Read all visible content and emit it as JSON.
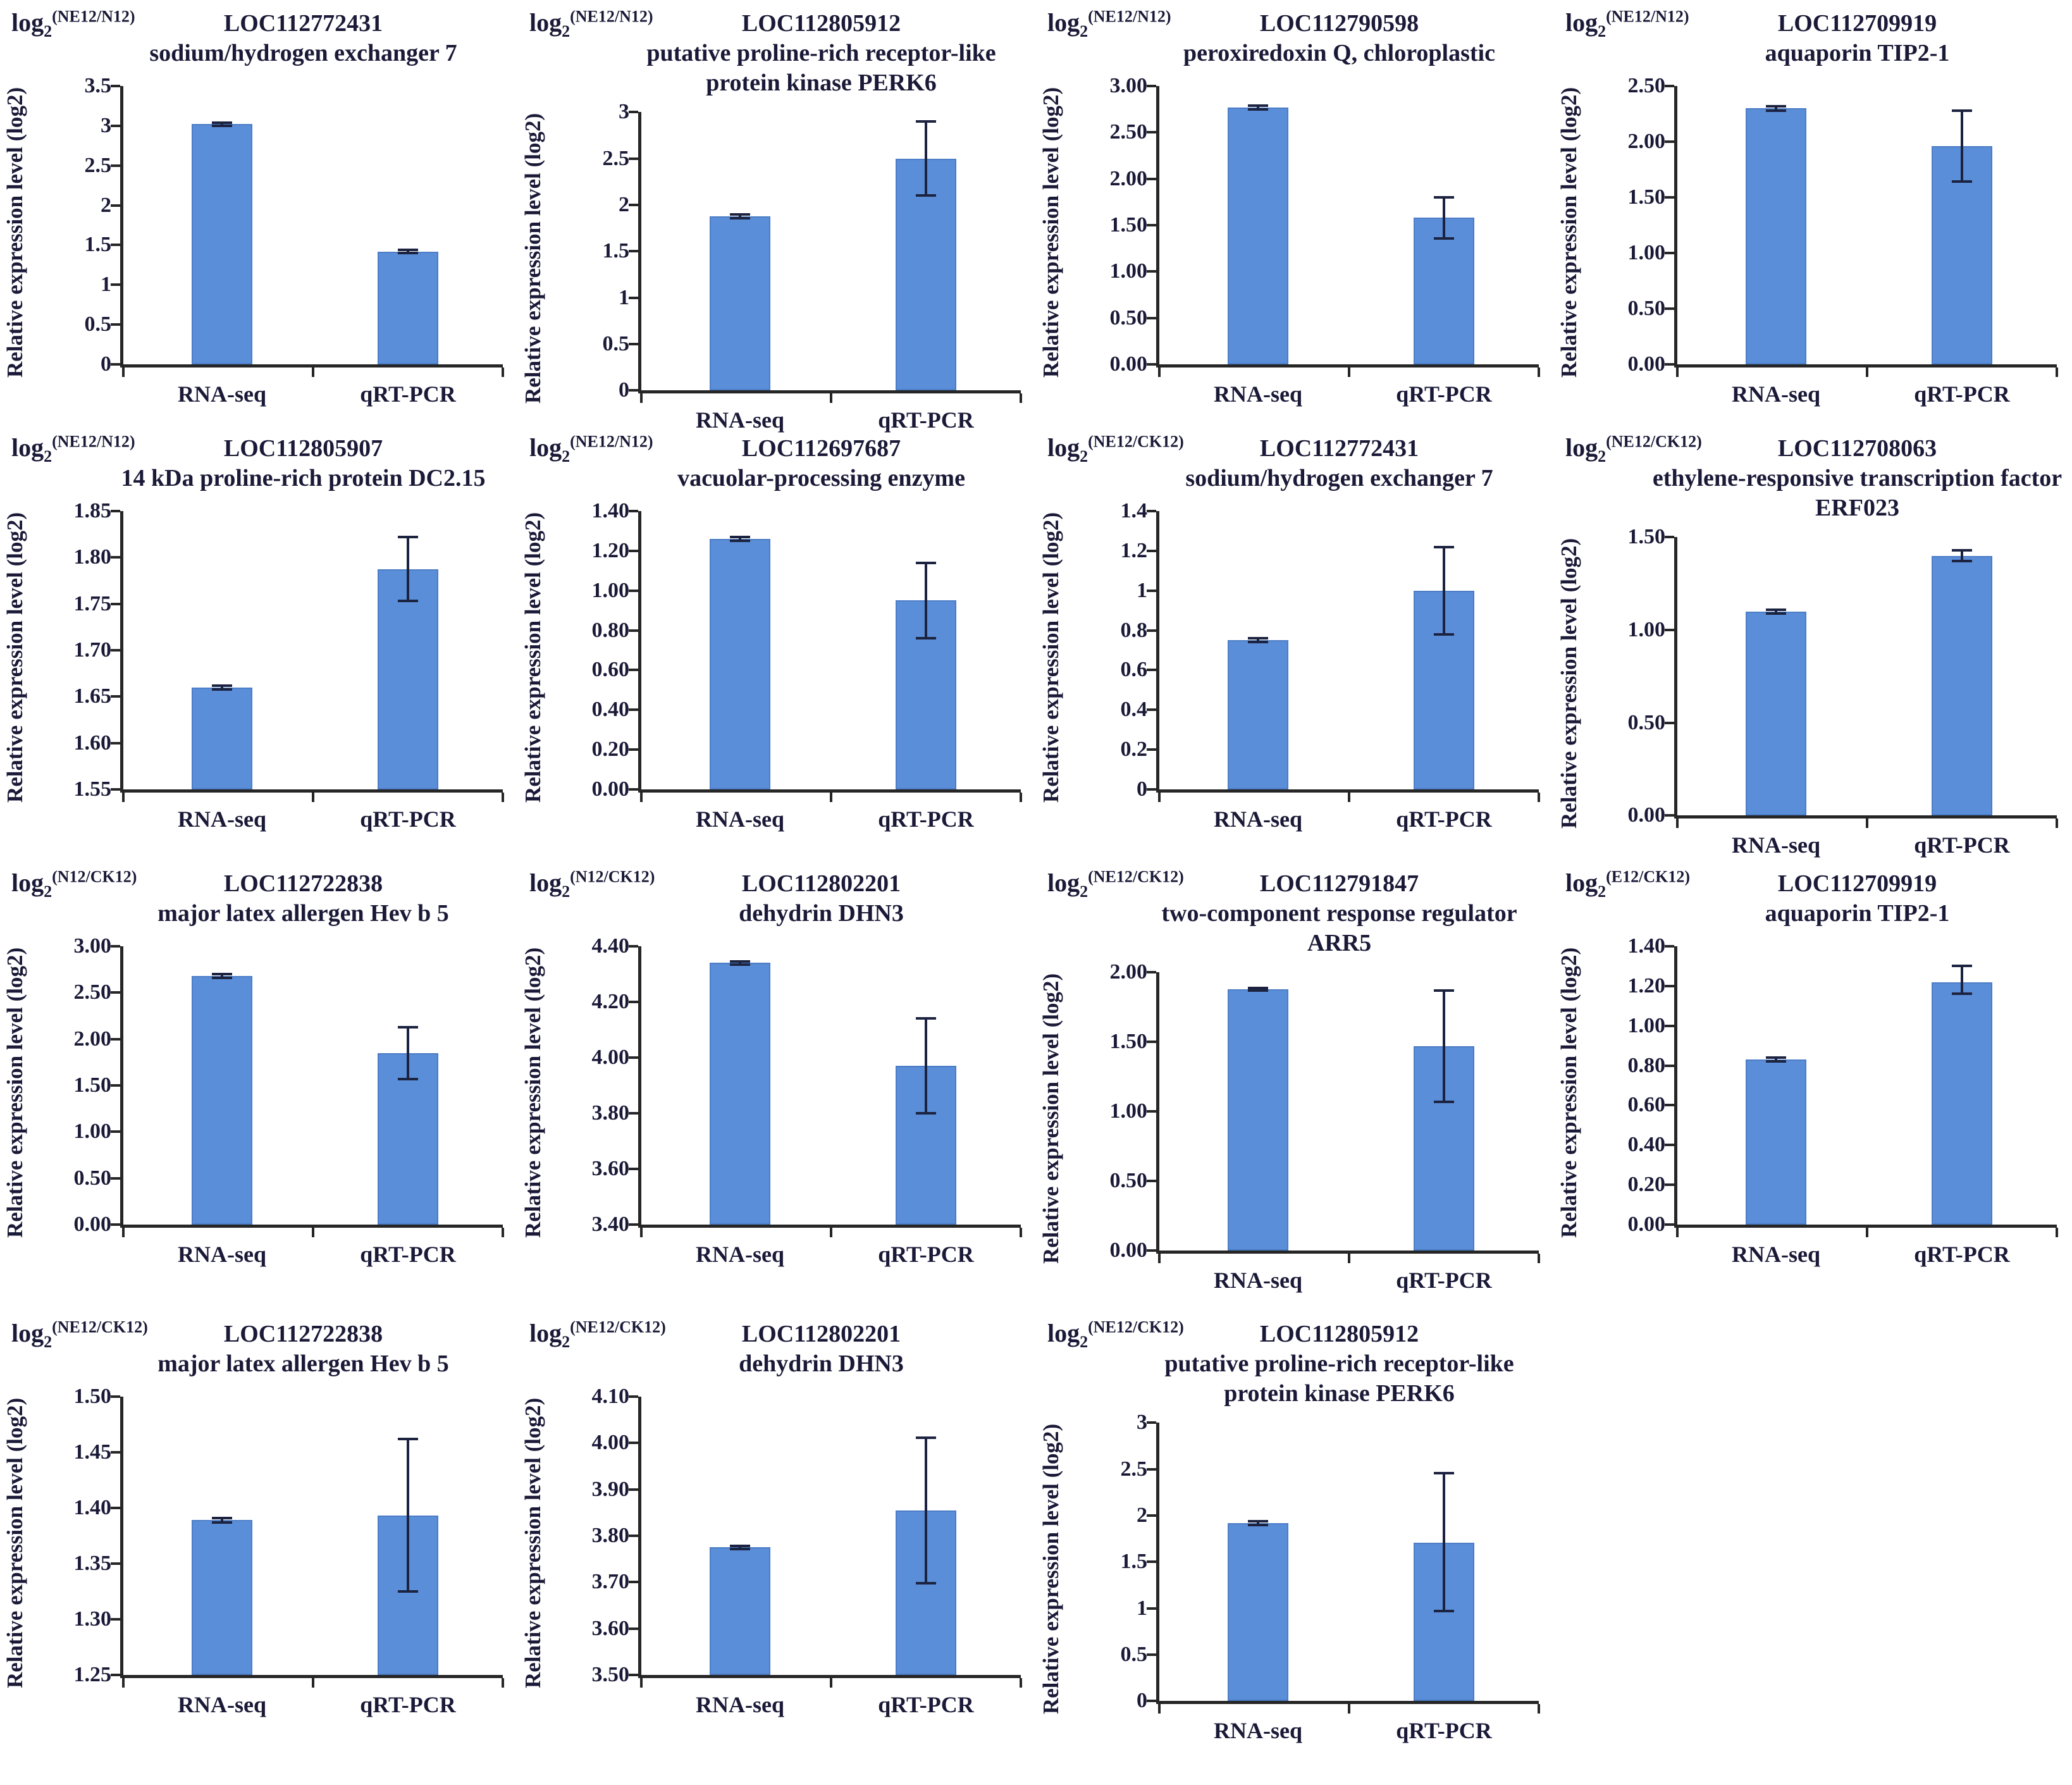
{
  "common": {
    "log_prefix": "log",
    "log_base": "2",
    "y_axis_label": "Relative expression level (log2)",
    "categories": [
      "RNA-seq",
      "qRT-PCR"
    ],
    "bar_color": "#5b8ed8",
    "bar_border_color": "#4c7dc6",
    "error_bar_color": "#1c2340",
    "axis_color": "#262626",
    "text_color": "#1a1a38"
  },
  "chart_data": [
    {
      "type": "bar",
      "ratio": "(NE12/N12)",
      "gene": "LOC112772431",
      "description": "sodium/hydrogen exchanger 7",
      "categories": [
        "RNA-seq",
        "qRT-PCR"
      ],
      "values": [
        3.02,
        1.42
      ],
      "errors": [
        [
          3.0,
          3.04
        ],
        [
          1.4,
          1.44
        ]
      ],
      "ylim": [
        0,
        3.5
      ],
      "yticks": [
        {
          "v": 0,
          "label": "0"
        },
        {
          "v": 0.5,
          "label": "0.5"
        },
        {
          "v": 1,
          "label": "1"
        },
        {
          "v": 1.5,
          "label": "1.5"
        },
        {
          "v": 2,
          "label": "2"
        },
        {
          "v": 2.5,
          "label": "2.5"
        },
        {
          "v": 3,
          "label": "3"
        },
        {
          "v": 3.5,
          "label": "3.5"
        }
      ]
    },
    {
      "type": "bar",
      "ratio": "(NE12/N12)",
      "gene": "LOC112805912",
      "description": "putative proline-rich receptor-like protein kinase PERK6",
      "categories": [
        "RNA-seq",
        "qRT-PCR"
      ],
      "values": [
        1.88,
        2.5
      ],
      "errors": [
        [
          1.86,
          1.9
        ],
        [
          2.1,
          2.9
        ]
      ],
      "ylim": [
        0,
        3
      ],
      "yticks": [
        {
          "v": 0,
          "label": "0"
        },
        {
          "v": 0.5,
          "label": "0.5"
        },
        {
          "v": 1,
          "label": "1"
        },
        {
          "v": 1.5,
          "label": "1.5"
        },
        {
          "v": 2,
          "label": "2"
        },
        {
          "v": 2.5,
          "label": "2.5"
        },
        {
          "v": 3,
          "label": "3"
        }
      ]
    },
    {
      "type": "bar",
      "ratio": "(NE12/N12)",
      "gene": "LOC112790598",
      "description": "peroxiredoxin Q, chloroplastic",
      "categories": [
        "RNA-seq",
        "qRT-PCR"
      ],
      "values": [
        2.77,
        1.58
      ],
      "errors": [
        [
          2.75,
          2.79
        ],
        [
          1.36,
          1.8
        ]
      ],
      "ylim": [
        0,
        3
      ],
      "yticks": [
        {
          "v": 0,
          "label": "0.00"
        },
        {
          "v": 0.5,
          "label": "0.50"
        },
        {
          "v": 1,
          "label": "1.00"
        },
        {
          "v": 1.5,
          "label": "1.50"
        },
        {
          "v": 2,
          "label": "2.00"
        },
        {
          "v": 2.5,
          "label": "2.50"
        },
        {
          "v": 3,
          "label": "3.00"
        }
      ]
    },
    {
      "type": "bar",
      "ratio": "(NE12/N12)",
      "gene": "LOC112709919",
      "description": "aquaporin TIP2-1",
      "categories": [
        "RNA-seq",
        "qRT-PCR"
      ],
      "values": [
        2.3,
        1.96
      ],
      "errors": [
        [
          2.28,
          2.32
        ],
        [
          1.64,
          2.28
        ]
      ],
      "ylim": [
        0,
        2.5
      ],
      "yticks": [
        {
          "v": 0,
          "label": "0.00"
        },
        {
          "v": 0.5,
          "label": "0.50"
        },
        {
          "v": 1,
          "label": "1.00"
        },
        {
          "v": 1.5,
          "label": "1.50"
        },
        {
          "v": 2,
          "label": "2.00"
        },
        {
          "v": 2.5,
          "label": "2.50"
        }
      ]
    },
    {
      "type": "bar",
      "ratio": "(NE12/N12)",
      "gene": "LOC112805907",
      "description": "14 kDa proline-rich protein DC2.15",
      "categories": [
        "RNA-seq",
        "qRT-PCR"
      ],
      "values": [
        1.66,
        1.787
      ],
      "errors": [
        [
          1.658,
          1.662
        ],
        [
          1.753,
          1.822
        ]
      ],
      "ylim": [
        1.55,
        1.85
      ],
      "yticks": [
        {
          "v": 1.55,
          "label": "1.55"
        },
        {
          "v": 1.6,
          "label": "1.60"
        },
        {
          "v": 1.65,
          "label": "1.65"
        },
        {
          "v": 1.7,
          "label": "1.70"
        },
        {
          "v": 1.75,
          "label": "1.75"
        },
        {
          "v": 1.8,
          "label": "1.80"
        },
        {
          "v": 1.85,
          "label": "1.85"
        }
      ]
    },
    {
      "type": "bar",
      "ratio": "(NE12/N12)",
      "gene": "LOC112697687",
      "description": "vacuolar-processing enzyme",
      "categories": [
        "RNA-seq",
        "qRT-PCR"
      ],
      "values": [
        1.26,
        0.95
      ],
      "errors": [
        [
          1.25,
          1.27
        ],
        [
          0.76,
          1.14
        ]
      ],
      "ylim": [
        0,
        1.4
      ],
      "yticks": [
        {
          "v": 0,
          "label": "0.00"
        },
        {
          "v": 0.2,
          "label": "0.20"
        },
        {
          "v": 0.4,
          "label": "0.40"
        },
        {
          "v": 0.6,
          "label": "0.60"
        },
        {
          "v": 0.8,
          "label": "0.80"
        },
        {
          "v": 1.0,
          "label": "1.00"
        },
        {
          "v": 1.2,
          "label": "1.20"
        },
        {
          "v": 1.4,
          "label": "1.40"
        }
      ]
    },
    {
      "type": "bar",
      "ratio": "(NE12/CK12)",
      "gene": "LOC112772431",
      "description": "sodium/hydrogen exchanger 7",
      "categories": [
        "RNA-seq",
        "qRT-PCR"
      ],
      "values": [
        0.75,
        1.0
      ],
      "errors": [
        [
          0.74,
          0.76
        ],
        [
          0.78,
          1.22
        ]
      ],
      "ylim": [
        0,
        1.4
      ],
      "yticks": [
        {
          "v": 0,
          "label": "0"
        },
        {
          "v": 0.2,
          "label": "0.2"
        },
        {
          "v": 0.4,
          "label": "0.4"
        },
        {
          "v": 0.6,
          "label": "0.6"
        },
        {
          "v": 0.8,
          "label": "0.8"
        },
        {
          "v": 1.0,
          "label": "1"
        },
        {
          "v": 1.2,
          "label": "1.2"
        },
        {
          "v": 1.4,
          "label": "1.4"
        }
      ]
    },
    {
      "type": "bar",
      "ratio": "(NE12/CK12)",
      "gene": "LOC112708063",
      "description": "ethylene-responsive transcription factor ERF023",
      "categories": [
        "RNA-seq",
        "qRT-PCR"
      ],
      "values": [
        1.1,
        1.4
      ],
      "errors": [
        [
          1.09,
          1.11
        ],
        [
          1.37,
          1.43
        ]
      ],
      "ylim": [
        0,
        1.5
      ],
      "yticks": [
        {
          "v": 0,
          "label": "0.00"
        },
        {
          "v": 0.5,
          "label": "0.50"
        },
        {
          "v": 1.0,
          "label": "1.00"
        },
        {
          "v": 1.5,
          "label": "1.50"
        }
      ]
    },
    {
      "type": "bar",
      "ratio": "(N12/CK12)",
      "gene": "LOC112722838",
      "description": "major latex allergen Hev b 5",
      "categories": [
        "RNA-seq",
        "qRT-PCR"
      ],
      "values": [
        2.68,
        1.85
      ],
      "errors": [
        [
          2.66,
          2.7
        ],
        [
          1.57,
          2.13
        ]
      ],
      "ylim": [
        0,
        3
      ],
      "yticks": [
        {
          "v": 0,
          "label": "0.00"
        },
        {
          "v": 0.5,
          "label": "0.50"
        },
        {
          "v": 1,
          "label": "1.00"
        },
        {
          "v": 1.5,
          "label": "1.50"
        },
        {
          "v": 2,
          "label": "2.00"
        },
        {
          "v": 2.5,
          "label": "2.50"
        },
        {
          "v": 3,
          "label": "3.00"
        }
      ]
    },
    {
      "type": "bar",
      "ratio": "(N12/CK12)",
      "gene": "LOC112802201",
      "description": "dehydrin DHN3",
      "categories": [
        "RNA-seq",
        "qRT-PCR"
      ],
      "values": [
        4.34,
        3.97
      ],
      "errors": [
        [
          4.335,
          4.345
        ],
        [
          3.8,
          4.14
        ]
      ],
      "ylim": [
        3.4,
        4.4
      ],
      "yticks": [
        {
          "v": 3.4,
          "label": "3.40"
        },
        {
          "v": 3.6,
          "label": "3.60"
        },
        {
          "v": 3.8,
          "label": "3.80"
        },
        {
          "v": 4.0,
          "label": "4.00"
        },
        {
          "v": 4.2,
          "label": "4.20"
        },
        {
          "v": 4.4,
          "label": "4.40"
        }
      ]
    },
    {
      "type": "bar",
      "ratio": "(NE12/CK12)",
      "gene": "LOC112791847",
      "description": "two-component response regulator ARR5",
      "categories": [
        "RNA-seq",
        "qRT-PCR"
      ],
      "values": [
        1.88,
        1.47
      ],
      "errors": [
        [
          1.87,
          1.89
        ],
        [
          1.07,
          1.87
        ]
      ],
      "ylim": [
        0,
        2
      ],
      "yticks": [
        {
          "v": 0,
          "label": "0.00"
        },
        {
          "v": 0.5,
          "label": "0.50"
        },
        {
          "v": 1.0,
          "label": "1.00"
        },
        {
          "v": 1.5,
          "label": "1.50"
        },
        {
          "v": 2.0,
          "label": "2.00"
        }
      ]
    },
    {
      "type": "bar",
      "ratio": "(E12/CK12)",
      "gene": "LOC112709919",
      "description": "aquaporin TIP2-1",
      "categories": [
        "RNA-seq",
        "qRT-PCR"
      ],
      "values": [
        0.83,
        1.22
      ],
      "errors": [
        [
          0.82,
          0.84
        ],
        [
          1.16,
          1.3
        ]
      ],
      "ylim": [
        0,
        1.4
      ],
      "yticks": [
        {
          "v": 0,
          "label": "0.00"
        },
        {
          "v": 0.2,
          "label": "0.20"
        },
        {
          "v": 0.4,
          "label": "0.40"
        },
        {
          "v": 0.6,
          "label": "0.60"
        },
        {
          "v": 0.8,
          "label": "0.80"
        },
        {
          "v": 1.0,
          "label": "1.00"
        },
        {
          "v": 1.2,
          "label": "1.20"
        },
        {
          "v": 1.4,
          "label": "1.40"
        }
      ]
    },
    {
      "type": "bar",
      "ratio": "(NE12/CK12)",
      "gene": "LOC112722838",
      "description": "major latex allergen Hev b 5",
      "categories": [
        "RNA-seq",
        "qRT-PCR"
      ],
      "values": [
        1.389,
        1.393
      ],
      "errors": [
        [
          1.387,
          1.391
        ],
        [
          1.325,
          1.462
        ]
      ],
      "ylim": [
        1.25,
        1.5
      ],
      "yticks": [
        {
          "v": 1.25,
          "label": "1.25"
        },
        {
          "v": 1.3,
          "label": "1.30"
        },
        {
          "v": 1.35,
          "label": "1.35"
        },
        {
          "v": 1.4,
          "label": "1.40"
        },
        {
          "v": 1.45,
          "label": "1.45"
        },
        {
          "v": 1.5,
          "label": "1.50"
        }
      ]
    },
    {
      "type": "bar",
      "ratio": "(NE12/CK12)",
      "gene": "LOC112802201",
      "description": "dehydrin DHN3",
      "categories": [
        "RNA-seq",
        "qRT-PCR"
      ],
      "values": [
        3.775,
        3.855
      ],
      "errors": [
        [
          3.772,
          3.778
        ],
        [
          3.698,
          4.012
        ]
      ],
      "ylim": [
        3.5,
        4.1
      ],
      "yticks": [
        {
          "v": 3.5,
          "label": "3.50"
        },
        {
          "v": 3.6,
          "label": "3.60"
        },
        {
          "v": 3.7,
          "label": "3.70"
        },
        {
          "v": 3.8,
          "label": "3.80"
        },
        {
          "v": 3.9,
          "label": "3.90"
        },
        {
          "v": 4.0,
          "label": "4.00"
        },
        {
          "v": 4.1,
          "label": "4.10"
        }
      ]
    },
    {
      "type": "bar",
      "ratio": "(NE12/CK12)",
      "gene": "LOC112805912",
      "description": "putative proline-rich receptor-like protein kinase PERK6",
      "categories": [
        "RNA-seq",
        "qRT-PCR"
      ],
      "values": [
        1.92,
        1.71
      ],
      "errors": [
        [
          1.9,
          1.94
        ],
        [
          0.97,
          2.46
        ]
      ],
      "ylim": [
        0,
        3
      ],
      "yticks": [
        {
          "v": 0,
          "label": "0"
        },
        {
          "v": 0.5,
          "label": "0.5"
        },
        {
          "v": 1,
          "label": "1"
        },
        {
          "v": 1.5,
          "label": "1.5"
        },
        {
          "v": 2,
          "label": "2"
        },
        {
          "v": 2.5,
          "label": "2.5"
        },
        {
          "v": 3,
          "label": "3"
        }
      ]
    }
  ]
}
